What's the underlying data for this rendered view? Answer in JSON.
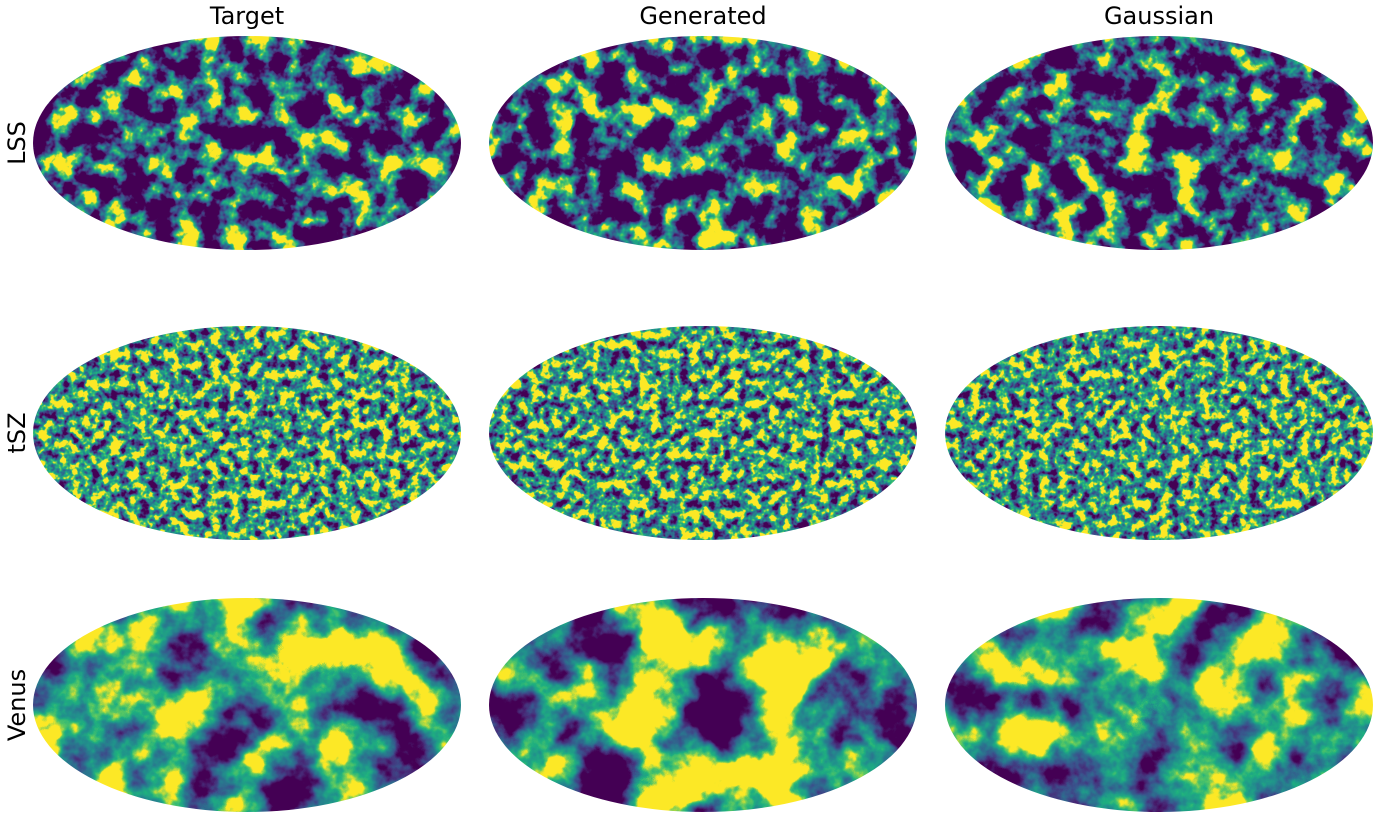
{
  "columns": [
    "Target",
    "Generated",
    "Gaussian"
  ],
  "rows": [
    "LSS",
    "tSZ",
    "Venus"
  ]
}
